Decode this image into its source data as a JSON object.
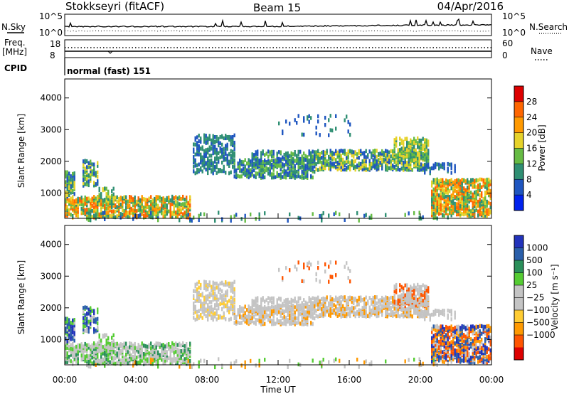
{
  "header": {
    "station": "Stokkseyri (fitACF)",
    "beam": "Beam 15",
    "date": "04/Apr/2016"
  },
  "top_panels": {
    "nsky_label": "N.Sky",
    "nsky_tick_top": "10^5",
    "nsky_tick_bottom": "10^0",
    "nsearch_label": "N.Search",
    "freq_label": "Freq.",
    "freq_unit": "[MHz]",
    "freq_tick_top": "18",
    "freq_tick_bottom": "8",
    "nave_tick_top": "60",
    "nave_tick_bottom": "0",
    "nave_label": "Nave",
    "cpid_label": "CPID",
    "cpid_text": "normal (fast) 151"
  },
  "colors": {
    "power": [
      "#0022ee",
      "#1f56c0",
      "#2f8f73",
      "#66bb44",
      "#e6d22a",
      "#ff9900",
      "#ff6600",
      "#dd0000"
    ],
    "velocity": [
      "#dd0000",
      "#ff5500",
      "#ff9900",
      "#ffcc33",
      "#c4c4c4",
      "#c4c4c4",
      "#55cc33",
      "#2a8f5a",
      "#2a5faa",
      "#2233bb"
    ]
  },
  "chart_data": [
    {
      "type": "heatmap",
      "name": "power",
      "ylabel": "Slant Range [km]",
      "ylim": [
        200,
        4600
      ],
      "yticks": [
        "1000",
        "2000",
        "3000",
        "4000"
      ],
      "colorbar_label": "Power [dB]",
      "colorbar_ticks": [
        "4",
        "8",
        "12",
        "16",
        "20",
        "24",
        "28"
      ],
      "colorbar_range": [
        0,
        32
      ]
    },
    {
      "type": "heatmap",
      "name": "velocity",
      "ylabel": "Slant Range [km]",
      "ylim": [
        200,
        4600
      ],
      "yticks": [
        "1000",
        "2000",
        "3000",
        "4000"
      ],
      "colorbar_label": "Velocity [m s⁻¹]",
      "colorbar_ticks": [
        "1000",
        "500",
        "100",
        "25",
        "−25",
        "−100",
        "−500",
        "−1000"
      ]
    }
  ],
  "xaxis": {
    "label": "Time UT",
    "ticks": [
      "00:00",
      "04:00",
      "08:00",
      "12:00",
      "16:00",
      "20:00",
      "00:00"
    ],
    "range_hours": [
      0,
      24
    ]
  }
}
